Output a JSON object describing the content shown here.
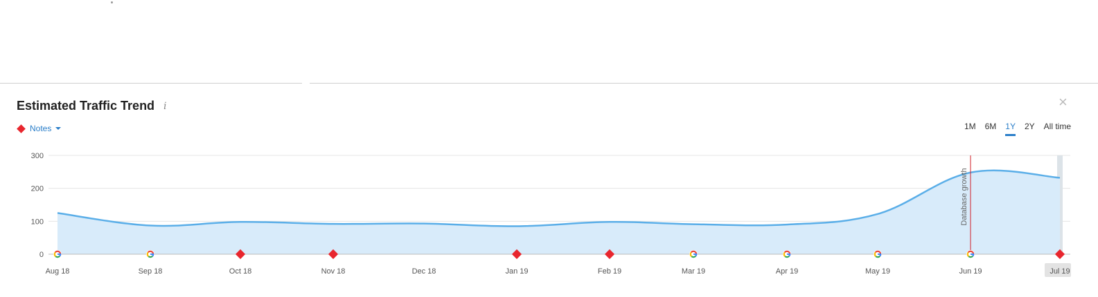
{
  "panel": {
    "title": "Estimated Traffic Trend",
    "info_icon": "i",
    "close_icon": "×",
    "notes_label": "Notes",
    "ranges": [
      "1M",
      "6M",
      "1Y",
      "2Y",
      "All time"
    ],
    "active_range": "1Y"
  },
  "colors": {
    "line": "#5aaee8",
    "area": "#d8ebfa",
    "note_marker": "#e8262e",
    "accent": "#2a7ec9"
  },
  "chart_data": {
    "type": "area",
    "title": "Estimated Traffic Trend",
    "categories": [
      "Aug 18",
      "Sep 18",
      "Oct 18",
      "Nov 18",
      "Dec 18",
      "Jan 19",
      "Feb 19",
      "Mar 19",
      "Apr 19",
      "May 19",
      "Jun 19",
      "Jul 19"
    ],
    "values": [
      125,
      87,
      98,
      92,
      93,
      85,
      98,
      91,
      90,
      122,
      248,
      232
    ],
    "ylim": [
      0,
      300
    ],
    "yticks": [
      0,
      100,
      200,
      300
    ],
    "grid": true,
    "highlighted_category": "Jul 19",
    "markers": [
      {
        "category": "Aug 18",
        "kind": "google-icon"
      },
      {
        "category": "Sep 18",
        "kind": "google-icon"
      },
      {
        "category": "Oct 18",
        "kind": "note-diamond"
      },
      {
        "category": "Nov 18",
        "kind": "note-diamond"
      },
      {
        "category": "Jan 19",
        "kind": "note-diamond"
      },
      {
        "category": "Feb 19",
        "kind": "note-diamond"
      },
      {
        "category": "Mar 19",
        "kind": "google-icon"
      },
      {
        "category": "Apr 19",
        "kind": "google-icon"
      },
      {
        "category": "May 19",
        "kind": "google-icon"
      },
      {
        "category": "Jun 19",
        "kind": "google-icon"
      },
      {
        "category": "Jul 19",
        "kind": "note-diamond"
      }
    ],
    "annotations": [
      {
        "category": "Jun 19",
        "text": "Database growth"
      }
    ]
  }
}
